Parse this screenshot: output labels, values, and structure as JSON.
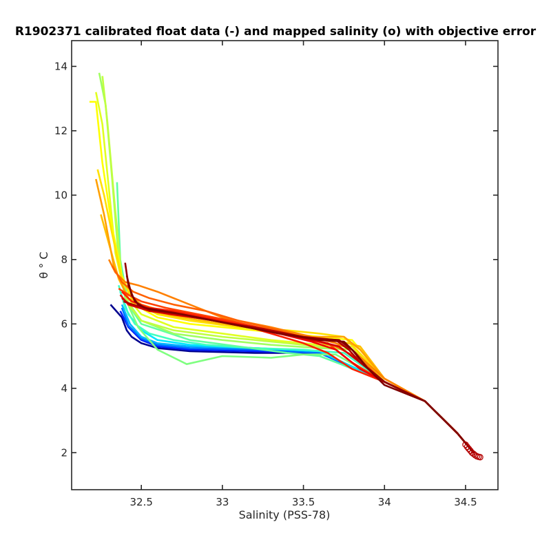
{
  "chart_data": {
    "type": "line",
    "title": "R1902371 calibrated float data (-) and mapped salinity (o) with objective error",
    "xlabel": "Salinity (PSS-78)",
    "ylabel": "θ ° C",
    "xlim": [
      32.07,
      34.7
    ],
    "ylim": [
      0.85,
      14.8
    ],
    "xticks": [
      32.5,
      33,
      33.5,
      34,
      34.5
    ],
    "xtick_labels": [
      "32.5",
      "33",
      "33.5",
      "34",
      "34.5"
    ],
    "yticks": [
      2,
      4,
      6,
      8,
      10,
      12,
      14
    ],
    "ytick_labels": [
      "2",
      "4",
      "6",
      "8",
      "10",
      "12",
      "14"
    ],
    "grid": false,
    "colormap": "jet (profile order: blue = early, dark red = late)",
    "series": [
      {
        "color": "#00008f",
        "x": [
          32.31,
          32.38,
          32.41,
          32.44,
          32.5,
          32.6,
          32.8,
          33.2,
          33.6,
          34.0,
          34.25,
          34.45,
          34.55
        ],
        "y": [
          6.6,
          6.2,
          5.8,
          5.6,
          5.4,
          5.25,
          5.15,
          5.1,
          5.1,
          4.2,
          3.6,
          2.6,
          2.0
        ]
      },
      {
        "color": "#0020ff",
        "x": [
          32.37,
          32.42,
          32.5,
          32.6,
          32.8,
          33.2,
          33.6,
          34.0,
          34.25,
          34.45,
          34.55
        ],
        "y": [
          6.4,
          5.9,
          5.5,
          5.3,
          5.2,
          5.15,
          5.1,
          4.2,
          3.6,
          2.6,
          2.0
        ]
      },
      {
        "color": "#0070ff",
        "x": [
          32.38,
          32.42,
          32.5,
          32.6,
          32.8,
          33.2,
          33.6,
          34.0,
          34.25,
          34.45,
          34.55
        ],
        "y": [
          6.5,
          5.95,
          5.55,
          5.35,
          5.25,
          5.2,
          5.1,
          4.2,
          3.6,
          2.6,
          2.0
        ]
      },
      {
        "color": "#00b4ff",
        "x": [
          32.38,
          32.43,
          32.5,
          32.6,
          32.8,
          33.2,
          33.6,
          34.0,
          34.25,
          34.45,
          34.55
        ],
        "y": [
          6.6,
          6.0,
          5.6,
          5.4,
          5.3,
          5.25,
          5.15,
          4.2,
          3.6,
          2.6,
          2.0
        ]
      },
      {
        "color": "#00e6ff",
        "x": [
          32.37,
          32.42,
          32.5,
          32.6,
          32.8,
          33.2,
          33.6,
          34.0,
          34.25,
          34.45,
          34.55
        ],
        "y": [
          7.0,
          6.3,
          5.8,
          5.5,
          5.35,
          5.25,
          5.15,
          4.2,
          3.6,
          2.6,
          2.0
        ]
      },
      {
        "color": "#40ffc0",
        "x": [
          32.36,
          32.4,
          32.46,
          32.55,
          32.7,
          32.9,
          33.2,
          33.5,
          33.75,
          34.0,
          34.25,
          34.45,
          34.55
        ],
        "y": [
          7.2,
          6.5,
          6.0,
          5.7,
          5.5,
          5.35,
          5.25,
          5.2,
          5.1,
          4.2,
          3.6,
          2.6,
          2.0
        ]
      },
      {
        "color": "#60ffa0",
        "x": [
          32.35,
          32.37,
          32.42,
          32.5,
          32.8,
          33.1,
          33.4,
          33.6,
          33.73,
          34.0,
          34.25,
          34.45,
          34.55
        ],
        "y": [
          10.4,
          8.0,
          6.6,
          6.0,
          5.5,
          5.3,
          5.1,
          5.0,
          4.75,
          4.2,
          3.6,
          2.6,
          2.0
        ]
      },
      {
        "color": "#7fff80",
        "x": [
          32.36,
          32.4,
          32.48,
          32.6,
          32.78,
          33.0,
          33.3,
          33.5,
          33.7,
          34.0,
          34.25,
          34.45,
          34.55
        ],
        "y": [
          8.0,
          6.8,
          5.9,
          5.2,
          4.75,
          5.0,
          4.95,
          5.05,
          5.05,
          4.2,
          3.6,
          2.6,
          2.0
        ]
      },
      {
        "color": "#a0ff60",
        "x": [
          32.24,
          32.28,
          32.32,
          32.36,
          32.4,
          32.5,
          32.7,
          33.0,
          33.3,
          33.6,
          33.8,
          34.0,
          34.25,
          34.45,
          34.55
        ],
        "y": [
          13.8,
          12.8,
          10.5,
          8.0,
          6.8,
          6.1,
          5.7,
          5.5,
          5.35,
          5.25,
          5.2,
          4.2,
          3.6,
          2.6,
          2.0
        ]
      },
      {
        "color": "#c0ff40",
        "x": [
          32.26,
          32.29,
          32.34,
          32.38,
          32.42,
          32.5,
          32.7,
          33.0,
          33.3,
          33.6,
          33.8,
          34.0,
          34.25,
          34.45,
          34.55
        ],
        "y": [
          13.7,
          12.3,
          9.5,
          7.4,
          6.6,
          6.1,
          5.8,
          5.6,
          5.45,
          5.3,
          5.2,
          4.2,
          3.6,
          2.6,
          2.0
        ]
      },
      {
        "color": "#e0ff20",
        "x": [
          32.22,
          32.26,
          32.3,
          32.34,
          32.4,
          32.5,
          32.7,
          33.0,
          33.3,
          33.6,
          33.8,
          34.0,
          34.25,
          34.45,
          34.55
        ],
        "y": [
          13.2,
          12.2,
          10.2,
          8.2,
          6.9,
          6.3,
          5.9,
          5.7,
          5.5,
          5.35,
          5.3,
          4.2,
          3.6,
          2.6,
          2.0
        ]
      },
      {
        "color": "#ffff00",
        "x": [
          32.18,
          32.22,
          32.26,
          32.32,
          32.38,
          32.46,
          32.6,
          32.8,
          33.1,
          33.4,
          33.6,
          33.8,
          34.0,
          34.25,
          34.45,
          34.55
        ],
        "y": [
          12.9,
          12.9,
          11.0,
          9.0,
          7.5,
          6.6,
          6.2,
          6.0,
          5.85,
          5.7,
          5.6,
          5.5,
          4.3,
          3.6,
          2.6,
          2.0
        ]
      },
      {
        "color": "#ffe000",
        "x": [
          32.23,
          32.27,
          32.32,
          32.38,
          32.45,
          32.6,
          32.8,
          33.1,
          33.4,
          33.6,
          33.75,
          34.0,
          34.25,
          34.45,
          34.55
        ],
        "y": [
          10.8,
          10.0,
          8.8,
          7.4,
          6.7,
          6.3,
          6.1,
          5.9,
          5.8,
          5.7,
          5.6,
          4.3,
          3.6,
          2.6,
          2.0
        ]
      },
      {
        "color": "#ffc000",
        "x": [
          32.25,
          32.3,
          32.36,
          32.42,
          32.55,
          32.75,
          33.0,
          33.3,
          33.55,
          33.7,
          33.85,
          34.0,
          34.25,
          34.45,
          34.55
        ],
        "y": [
          9.4,
          8.5,
          7.4,
          6.8,
          6.4,
          6.2,
          6.0,
          5.85,
          5.6,
          5.5,
          5.3,
          4.3,
          3.6,
          2.6,
          2.0
        ]
      },
      {
        "color": "#ffa000",
        "x": [
          32.22,
          32.27,
          32.33,
          32.4,
          32.5,
          32.7,
          33.0,
          33.3,
          33.55,
          33.75,
          33.85,
          34.0,
          34.25,
          34.45,
          34.55
        ],
        "y": [
          10.5,
          9.4,
          7.8,
          7.0,
          6.6,
          6.3,
          6.1,
          5.8,
          5.6,
          5.6,
          5.2,
          4.3,
          3.6,
          2.6,
          2.0
        ]
      },
      {
        "color": "#ff8000",
        "x": [
          32.3,
          32.34,
          32.4,
          32.48,
          32.6,
          32.8,
          33.0,
          33.3,
          33.55,
          33.7,
          33.8,
          34.0,
          34.25,
          34.45,
          34.55
        ],
        "y": [
          8.0,
          7.6,
          7.3,
          7.2,
          7.0,
          6.6,
          6.2,
          5.9,
          5.6,
          5.4,
          5.2,
          4.3,
          3.6,
          2.6,
          2.0
        ]
      },
      {
        "color": "#ff6000",
        "x": [
          32.32,
          32.38,
          32.45,
          32.55,
          32.7,
          32.9,
          33.1,
          33.35,
          33.55,
          33.7,
          33.85,
          34.0,
          34.25,
          34.45,
          34.55
        ],
        "y": [
          7.8,
          7.3,
          7.0,
          6.8,
          6.6,
          6.4,
          6.1,
          5.8,
          5.5,
          5.3,
          4.9,
          4.2,
          3.6,
          2.6,
          2.0
        ]
      },
      {
        "color": "#ff4000",
        "x": [
          32.36,
          32.42,
          32.5,
          32.65,
          32.85,
          33.05,
          33.3,
          33.5,
          33.65,
          33.8,
          34.0,
          34.25,
          34.45,
          34.55
        ],
        "y": [
          7.1,
          6.9,
          6.7,
          6.5,
          6.3,
          6.1,
          5.8,
          5.55,
          5.4,
          4.8,
          4.2,
          3.6,
          2.6,
          2.0
        ]
      },
      {
        "color": "#ff2000",
        "x": [
          32.38,
          32.44,
          32.55,
          32.7,
          32.9,
          33.1,
          33.3,
          33.5,
          33.65,
          33.8,
          34.0,
          34.25,
          34.45,
          34.55
        ],
        "y": [
          7.0,
          6.7,
          6.5,
          6.4,
          6.2,
          6.0,
          5.7,
          5.4,
          5.1,
          4.6,
          4.2,
          3.6,
          2.6,
          2.0
        ]
      },
      {
        "color": "#f00000",
        "x": [
          32.37,
          32.42,
          32.52,
          32.68,
          32.9,
          33.1,
          33.35,
          33.55,
          33.7,
          33.85,
          34.0,
          34.25,
          34.45,
          34.55
        ],
        "y": [
          6.9,
          6.6,
          6.45,
          6.3,
          6.15,
          5.95,
          5.7,
          5.45,
          5.2,
          4.6,
          4.2,
          3.6,
          2.6,
          2.0
        ]
      },
      {
        "color": "#d00000",
        "x": [
          32.38,
          32.43,
          32.55,
          32.7,
          32.95,
          33.2,
          33.45,
          33.6,
          33.72,
          33.85,
          34.0,
          34.25,
          34.45,
          34.55
        ],
        "y": [
          6.8,
          6.6,
          6.4,
          6.3,
          6.1,
          5.9,
          5.6,
          5.45,
          5.3,
          4.8,
          4.2,
          3.6,
          2.6,
          2.0
        ]
      },
      {
        "color": "#b00000",
        "x": [
          32.39,
          32.45,
          32.55,
          32.75,
          33.0,
          33.25,
          33.5,
          33.7,
          33.78,
          33.85,
          34.0,
          34.25,
          34.45,
          34.55
        ],
        "y": [
          6.7,
          6.6,
          6.45,
          6.3,
          6.05,
          5.85,
          5.6,
          5.5,
          5.2,
          4.8,
          4.2,
          3.6,
          2.6,
          2.0
        ]
      },
      {
        "color": "#900000",
        "x": [
          32.4,
          32.42,
          32.46,
          32.52,
          32.7,
          33.0,
          33.3,
          33.55,
          33.72,
          33.8,
          33.88,
          34.0,
          34.25,
          34.45,
          34.55
        ],
        "y": [
          7.9,
          7.2,
          6.7,
          6.5,
          6.35,
          6.05,
          5.75,
          5.55,
          5.5,
          5.2,
          4.7,
          4.2,
          3.6,
          2.6,
          2.0
        ]
      },
      {
        "color": "#7f0000",
        "x": [
          32.41,
          32.44,
          32.48,
          32.55,
          32.75,
          33.05,
          33.35,
          33.6,
          33.75,
          33.82,
          33.9,
          34.0,
          34.25,
          34.45,
          34.55
        ],
        "y": [
          7.5,
          6.9,
          6.6,
          6.45,
          6.3,
          6.0,
          5.7,
          5.5,
          5.45,
          5.1,
          4.6,
          4.1,
          3.6,
          2.6,
          2.0
        ]
      }
    ],
    "markers": {
      "symbol": "o",
      "color": "#b40000",
      "x": [
        34.5,
        34.51,
        34.52,
        34.53,
        34.54,
        34.55,
        34.56,
        34.57,
        34.58,
        34.59
      ],
      "y": [
        2.25,
        2.18,
        2.12,
        2.06,
        2.0,
        1.96,
        1.92,
        1.89,
        1.87,
        1.86
      ]
    }
  }
}
